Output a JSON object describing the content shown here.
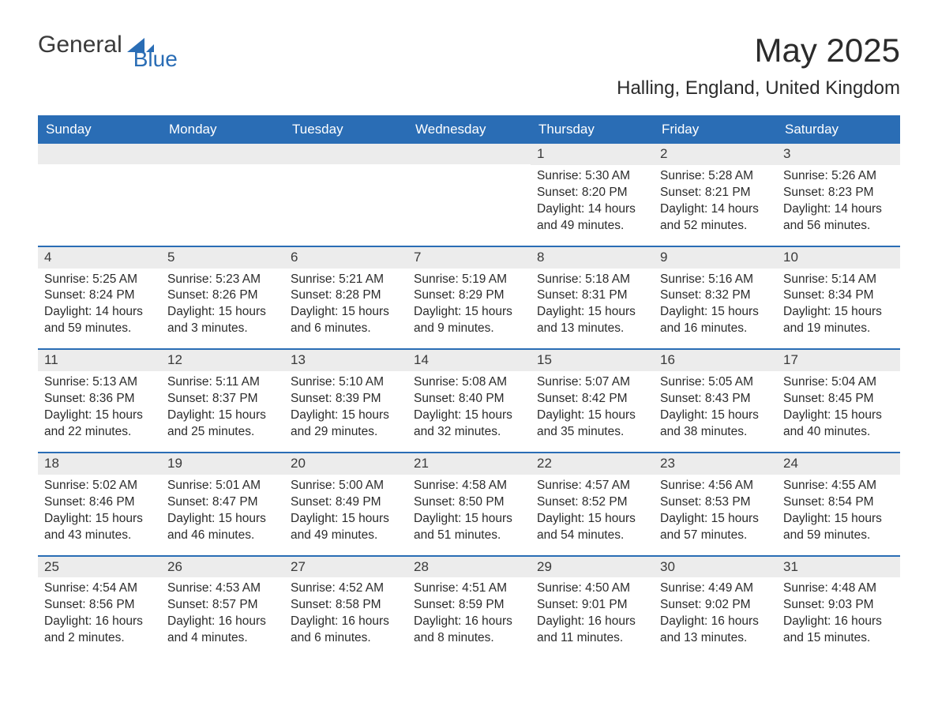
{
  "brand": {
    "text_main": "General",
    "text_accent": "Blue",
    "accent_color": "#2a6db5"
  },
  "header": {
    "month_title": "May 2025",
    "location": "Halling, England, United Kingdom"
  },
  "colors": {
    "header_bg": "#2a6db5",
    "header_text": "#ffffff",
    "daynum_bg": "#ececec",
    "body_text": "#2b2b2b",
    "week_divider": "#2a6db5",
    "page_bg": "#ffffff"
  },
  "typography": {
    "title_fontsize": 42,
    "location_fontsize": 24,
    "weekday_fontsize": 17,
    "daynum_fontsize": 17,
    "body_fontsize": 15.5,
    "font_family": "Arial"
  },
  "layout": {
    "columns": 7,
    "rows": 5,
    "week_row_min_height": 128
  },
  "weekdays": [
    "Sunday",
    "Monday",
    "Tuesday",
    "Wednesday",
    "Thursday",
    "Friday",
    "Saturday"
  ],
  "weeks": [
    [
      {
        "blank": true
      },
      {
        "blank": true
      },
      {
        "blank": true
      },
      {
        "blank": true
      },
      {
        "day": "1",
        "sunrise": "Sunrise: 5:30 AM",
        "sunset": "Sunset: 8:20 PM",
        "daylight": "Daylight: 14 hours and 49 minutes."
      },
      {
        "day": "2",
        "sunrise": "Sunrise: 5:28 AM",
        "sunset": "Sunset: 8:21 PM",
        "daylight": "Daylight: 14 hours and 52 minutes."
      },
      {
        "day": "3",
        "sunrise": "Sunrise: 5:26 AM",
        "sunset": "Sunset: 8:23 PM",
        "daylight": "Daylight: 14 hours and 56 minutes."
      }
    ],
    [
      {
        "day": "4",
        "sunrise": "Sunrise: 5:25 AM",
        "sunset": "Sunset: 8:24 PM",
        "daylight": "Daylight: 14 hours and 59 minutes."
      },
      {
        "day": "5",
        "sunrise": "Sunrise: 5:23 AM",
        "sunset": "Sunset: 8:26 PM",
        "daylight": "Daylight: 15 hours and 3 minutes."
      },
      {
        "day": "6",
        "sunrise": "Sunrise: 5:21 AM",
        "sunset": "Sunset: 8:28 PM",
        "daylight": "Daylight: 15 hours and 6 minutes."
      },
      {
        "day": "7",
        "sunrise": "Sunrise: 5:19 AM",
        "sunset": "Sunset: 8:29 PM",
        "daylight": "Daylight: 15 hours and 9 minutes."
      },
      {
        "day": "8",
        "sunrise": "Sunrise: 5:18 AM",
        "sunset": "Sunset: 8:31 PM",
        "daylight": "Daylight: 15 hours and 13 minutes."
      },
      {
        "day": "9",
        "sunrise": "Sunrise: 5:16 AM",
        "sunset": "Sunset: 8:32 PM",
        "daylight": "Daylight: 15 hours and 16 minutes."
      },
      {
        "day": "10",
        "sunrise": "Sunrise: 5:14 AM",
        "sunset": "Sunset: 8:34 PM",
        "daylight": "Daylight: 15 hours and 19 minutes."
      }
    ],
    [
      {
        "day": "11",
        "sunrise": "Sunrise: 5:13 AM",
        "sunset": "Sunset: 8:36 PM",
        "daylight": "Daylight: 15 hours and 22 minutes."
      },
      {
        "day": "12",
        "sunrise": "Sunrise: 5:11 AM",
        "sunset": "Sunset: 8:37 PM",
        "daylight": "Daylight: 15 hours and 25 minutes."
      },
      {
        "day": "13",
        "sunrise": "Sunrise: 5:10 AM",
        "sunset": "Sunset: 8:39 PM",
        "daylight": "Daylight: 15 hours and 29 minutes."
      },
      {
        "day": "14",
        "sunrise": "Sunrise: 5:08 AM",
        "sunset": "Sunset: 8:40 PM",
        "daylight": "Daylight: 15 hours and 32 minutes."
      },
      {
        "day": "15",
        "sunrise": "Sunrise: 5:07 AM",
        "sunset": "Sunset: 8:42 PM",
        "daylight": "Daylight: 15 hours and 35 minutes."
      },
      {
        "day": "16",
        "sunrise": "Sunrise: 5:05 AM",
        "sunset": "Sunset: 8:43 PM",
        "daylight": "Daylight: 15 hours and 38 minutes."
      },
      {
        "day": "17",
        "sunrise": "Sunrise: 5:04 AM",
        "sunset": "Sunset: 8:45 PM",
        "daylight": "Daylight: 15 hours and 40 minutes."
      }
    ],
    [
      {
        "day": "18",
        "sunrise": "Sunrise: 5:02 AM",
        "sunset": "Sunset: 8:46 PM",
        "daylight": "Daylight: 15 hours and 43 minutes."
      },
      {
        "day": "19",
        "sunrise": "Sunrise: 5:01 AM",
        "sunset": "Sunset: 8:47 PM",
        "daylight": "Daylight: 15 hours and 46 minutes."
      },
      {
        "day": "20",
        "sunrise": "Sunrise: 5:00 AM",
        "sunset": "Sunset: 8:49 PM",
        "daylight": "Daylight: 15 hours and 49 minutes."
      },
      {
        "day": "21",
        "sunrise": "Sunrise: 4:58 AM",
        "sunset": "Sunset: 8:50 PM",
        "daylight": "Daylight: 15 hours and 51 minutes."
      },
      {
        "day": "22",
        "sunrise": "Sunrise: 4:57 AM",
        "sunset": "Sunset: 8:52 PM",
        "daylight": "Daylight: 15 hours and 54 minutes."
      },
      {
        "day": "23",
        "sunrise": "Sunrise: 4:56 AM",
        "sunset": "Sunset: 8:53 PM",
        "daylight": "Daylight: 15 hours and 57 minutes."
      },
      {
        "day": "24",
        "sunrise": "Sunrise: 4:55 AM",
        "sunset": "Sunset: 8:54 PM",
        "daylight": "Daylight: 15 hours and 59 minutes."
      }
    ],
    [
      {
        "day": "25",
        "sunrise": "Sunrise: 4:54 AM",
        "sunset": "Sunset: 8:56 PM",
        "daylight": "Daylight: 16 hours and 2 minutes."
      },
      {
        "day": "26",
        "sunrise": "Sunrise: 4:53 AM",
        "sunset": "Sunset: 8:57 PM",
        "daylight": "Daylight: 16 hours and 4 minutes."
      },
      {
        "day": "27",
        "sunrise": "Sunrise: 4:52 AM",
        "sunset": "Sunset: 8:58 PM",
        "daylight": "Daylight: 16 hours and 6 minutes."
      },
      {
        "day": "28",
        "sunrise": "Sunrise: 4:51 AM",
        "sunset": "Sunset: 8:59 PM",
        "daylight": "Daylight: 16 hours and 8 minutes."
      },
      {
        "day": "29",
        "sunrise": "Sunrise: 4:50 AM",
        "sunset": "Sunset: 9:01 PM",
        "daylight": "Daylight: 16 hours and 11 minutes."
      },
      {
        "day": "30",
        "sunrise": "Sunrise: 4:49 AM",
        "sunset": "Sunset: 9:02 PM",
        "daylight": "Daylight: 16 hours and 13 minutes."
      },
      {
        "day": "31",
        "sunrise": "Sunrise: 4:48 AM",
        "sunset": "Sunset: 9:03 PM",
        "daylight": "Daylight: 16 hours and 15 minutes."
      }
    ]
  ]
}
